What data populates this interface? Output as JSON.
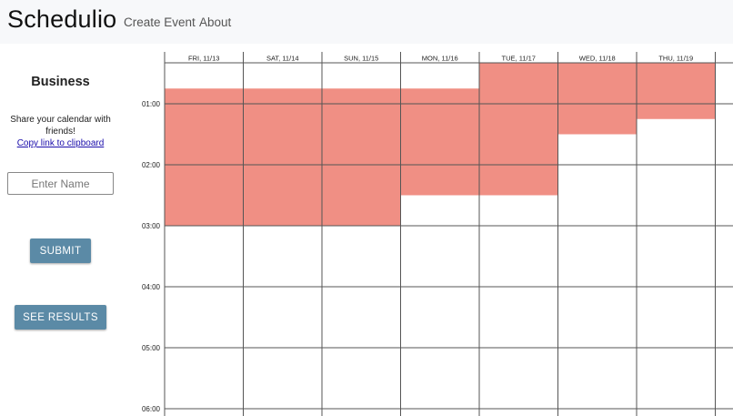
{
  "navbar": {
    "brand": "Schedulio",
    "links": [
      "Create Event",
      "About"
    ]
  },
  "sidebar": {
    "event_title": "Business",
    "share_text": "Share your calendar with friends!",
    "copy_link": "Copy link to clipboard",
    "name_placeholder": "Enter Name",
    "submit_label": "SUBMIT",
    "results_label": "SEE RESULTS"
  },
  "calendar": {
    "days": [
      "FRI, 11/13",
      "SAT, 11/14",
      "SUN, 11/15",
      "MON, 11/16",
      "TUE, 11/17",
      "WED, 11/18",
      "THU, 11/19"
    ],
    "hours": [
      "01:00",
      "02:00",
      "03:00",
      "04:00",
      "05:00",
      "06:00"
    ],
    "availability": [
      [
        0.75,
        3.0
      ],
      [
        0.75,
        3.0
      ],
      [
        0.75,
        3.0
      ],
      [
        0.75,
        2.5
      ],
      [
        0.0,
        2.5
      ],
      [
        0.0,
        1.5
      ],
      [
        0.0,
        1.25
      ]
    ],
    "colors": {
      "available": "#f08f84",
      "grid": "#555555"
    }
  }
}
